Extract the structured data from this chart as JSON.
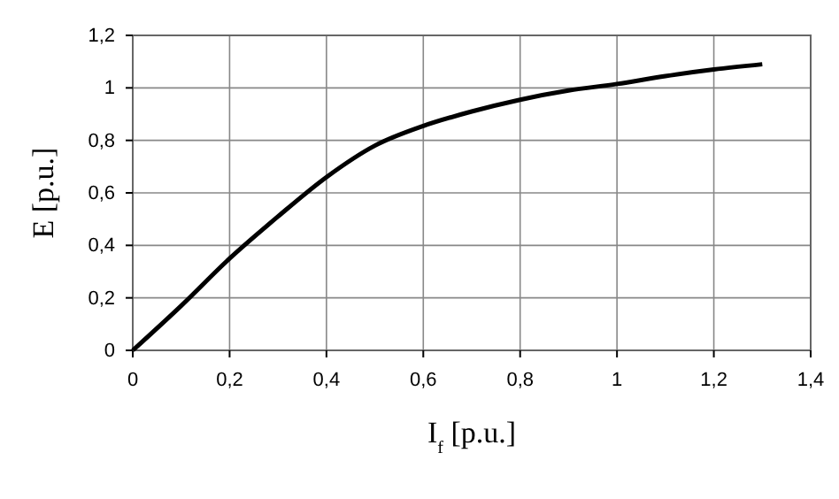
{
  "chart_data": {
    "type": "line",
    "xlabel": "I$_{f}$ [p.u.]",
    "ylabel": "E  [p.u.]",
    "x": [
      0,
      0.1,
      0.2,
      0.3,
      0.4,
      0.5,
      0.6,
      0.7,
      0.8,
      0.9,
      1.0,
      1.1,
      1.2,
      1.3
    ],
    "series": [
      {
        "color": "#000000",
        "values": [
          0,
          0.17,
          0.35,
          0.51,
          0.66,
          0.78,
          0.855,
          0.91,
          0.955,
          0.99,
          1.015,
          1.045,
          1.07,
          1.09
        ]
      }
    ],
    "xlim": [
      0,
      1.4
    ],
    "ylim": [
      0,
      1.2
    ],
    "xticks": [
      0,
      {
        "value": 0.2,
        "label": "0,2"
      },
      {
        "value": 0.4,
        "label": "0,4"
      },
      {
        "value": 0.6,
        "label": "0,6"
      },
      {
        "value": 0.8,
        "label": "0,8"
      },
      1,
      {
        "value": 1.2,
        "label": "1,2"
      },
      {
        "value": 1.4,
        "label": "1,4"
      }
    ],
    "yticks": [
      0,
      {
        "value": 0.2,
        "label": "0,2"
      },
      {
        "value": 0.4,
        "label": "0,4"
      },
      {
        "value": 0.6,
        "label": "0,6"
      },
      {
        "value": 0.8,
        "label": "0,8"
      },
      1,
      {
        "value": 1.2,
        "label": "1,2"
      }
    ],
    "grid": true,
    "marker": "none",
    "line_style": "solid"
  }
}
